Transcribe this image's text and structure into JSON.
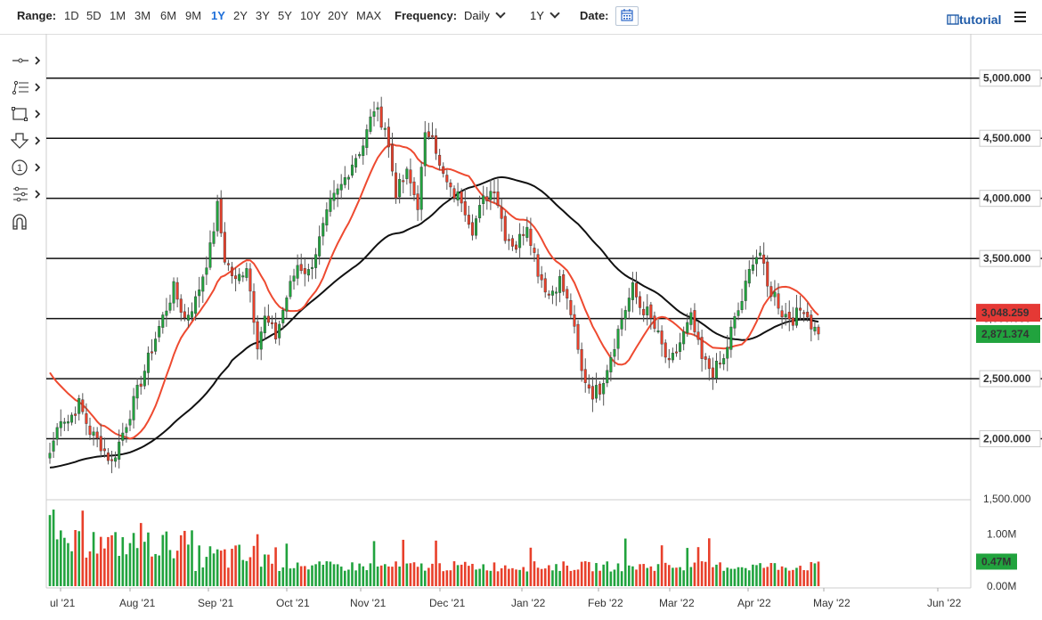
{
  "toolbar": {
    "range_label": "Range:",
    "ranges": [
      "1D",
      "5D",
      "1M",
      "3M",
      "6M",
      "9M",
      "1Y",
      "2Y",
      "3Y",
      "5Y",
      "10Y",
      "20Y",
      "MAX"
    ],
    "active_range": "1Y",
    "frequency_label": "Frequency:",
    "frequency_value": "Daily",
    "period_value": "1Y",
    "date_label": "Date:",
    "tutorial_label": "tutorial",
    "accent_color": "#1e6fd9"
  },
  "sidebar_tools": [
    "crosshair-tool-icon",
    "fibonacci-tool-icon",
    "rectangle-tool-icon",
    "arrow-down-tool-icon",
    "numbered-marker-tool-icon",
    "measure-tool-icon",
    "magnet-tool-icon"
  ],
  "chart_data": {
    "type": "candlestick",
    "x_ticks": [
      "ul '21",
      "Aug '21",
      "Sep '21",
      "Oct '21",
      "Nov '21",
      "Dec '21",
      "Jan '22",
      "Feb '22",
      "Mar '22",
      "Apr '22",
      "May '22",
      "Jun '22"
    ],
    "y_ticks": [
      "1,500.000",
      "2,000.000",
      "2,500.000",
      "3,000.000",
      "3,500.000",
      "4,000.000",
      "4,500.000",
      "5,000.000"
    ],
    "ylim": [
      1500,
      5250
    ],
    "horizontal_levels": [
      2000,
      2500,
      3000,
      3500,
      4000,
      4500,
      5000
    ],
    "boxed_levels": [
      "2,000.000",
      "2,500.000",
      "3,500.000",
      "4,000.000",
      "4,500.000",
      "5,000.000"
    ],
    "price_badges": [
      {
        "label": "3,048.259",
        "value": 3048.259,
        "color": "#e53935"
      },
      {
        "label": "2,871.374",
        "value": 2871.374,
        "color": "#21a33e"
      }
    ],
    "ma_fast_color": "#ee4a30",
    "ma_slow_color": "#111111",
    "up_color": "#21a33e",
    "down_color": "#e8402b",
    "anchors": [
      [
        0,
        1880
      ],
      [
        3,
        2190
      ],
      [
        5,
        2150
      ],
      [
        8,
        2290
      ],
      [
        11,
        2060
      ],
      [
        14,
        1950
      ],
      [
        17,
        1800
      ],
      [
        20,
        2050
      ],
      [
        23,
        2300
      ],
      [
        26,
        2570
      ],
      [
        30,
        2930
      ],
      [
        34,
        3250
      ],
      [
        37,
        3000
      ],
      [
        40,
        3150
      ],
      [
        44,
        3580
      ],
      [
        46,
        3930
      ],
      [
        48,
        3500
      ],
      [
        51,
        3300
      ],
      [
        54,
        3450
      ],
      [
        57,
        2800
      ],
      [
        59,
        3000
      ],
      [
        62,
        2850
      ],
      [
        65,
        3180
      ],
      [
        68,
        3450
      ],
      [
        71,
        3380
      ],
      [
        74,
        3650
      ],
      [
        77,
        3950
      ],
      [
        80,
        4100
      ],
      [
        83,
        4300
      ],
      [
        86,
        4450
      ],
      [
        89,
        4750
      ],
      [
        92,
        4600
      ],
      [
        95,
        4050
      ],
      [
        98,
        4200
      ],
      [
        101,
        3950
      ],
      [
        103,
        4500
      ],
      [
        105,
        4580
      ],
      [
        107,
        4250
      ],
      [
        110,
        4050
      ],
      [
        113,
        4000
      ],
      [
        116,
        3750
      ],
      [
        119,
        3980
      ],
      [
        122,
        4100
      ],
      [
        125,
        3700
      ],
      [
        128,
        3600
      ],
      [
        131,
        3800
      ],
      [
        134,
        3400
      ],
      [
        137,
        3200
      ],
      [
        140,
        3320
      ],
      [
        143,
        3050
      ],
      [
        146,
        2550
      ],
      [
        149,
        2380
      ],
      [
        151,
        2420
      ],
      [
        154,
        2700
      ],
      [
        157,
        3000
      ],
      [
        160,
        3250
      ],
      [
        162,
        3100
      ],
      [
        164,
        3050
      ],
      [
        167,
        2850
      ],
      [
        170,
        2600
      ],
      [
        173,
        2800
      ],
      [
        176,
        3000
      ],
      [
        179,
        2650
      ],
      [
        182,
        2560
      ],
      [
        185,
        2650
      ],
      [
        187,
        2900
      ],
      [
        190,
        3150
      ],
      [
        193,
        3500
      ],
      [
        195,
        3550
      ],
      [
        197,
        3250
      ],
      [
        199,
        3200
      ],
      [
        201,
        3050
      ],
      [
        204,
        3000
      ],
      [
        207,
        3100
      ],
      [
        209,
        2950
      ],
      [
        211,
        2871
      ]
    ],
    "volume_ticks": [
      "0.00M",
      "1.00M"
    ],
    "volume_badge": "0.47M",
    "volume_max": 1.4
  }
}
